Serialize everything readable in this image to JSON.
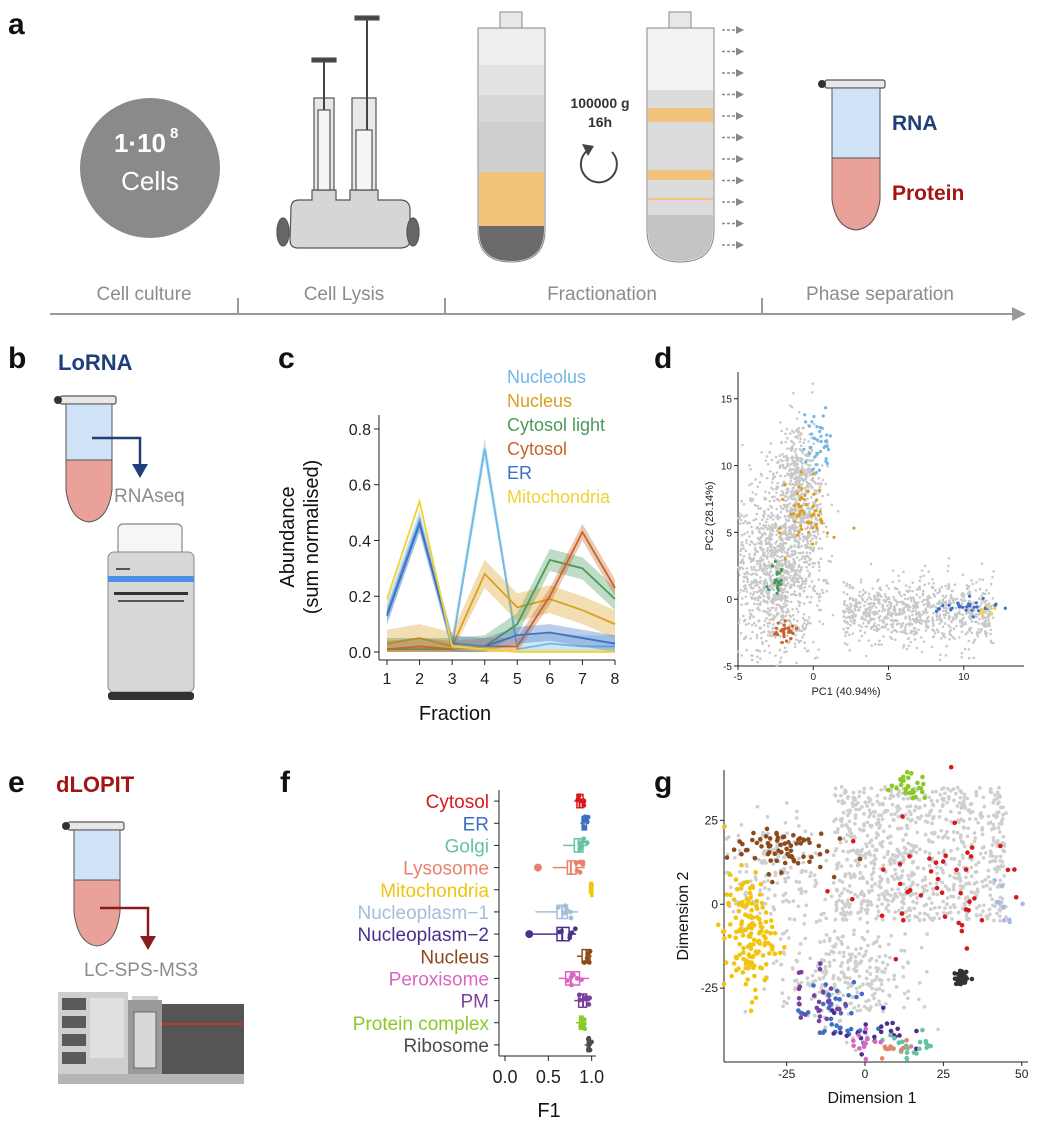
{
  "panel_labels": {
    "a": "a",
    "b": "b",
    "c": "c",
    "d": "d",
    "e": "e",
    "f": "f",
    "g": "g"
  },
  "panel_a": {
    "cells_number": "1·10",
    "cells_exponent": "8",
    "cells_word": "Cells",
    "centrifuge_speed": "100000 g",
    "centrifuge_time": "16h",
    "rna_label": "RNA",
    "protein_label": "Protein",
    "stages": [
      "Cell culture",
      "Cell Lysis",
      "Fractionation",
      "Phase separation"
    ],
    "colors": {
      "rna": "#1f3f7a",
      "protein": "#a31515",
      "band": "#f0c27a",
      "stage_text": "#8c8c8c"
    }
  },
  "panel_b": {
    "title": "LoRNA",
    "method": "RNAseq",
    "colors": {
      "title": "#1f3f7a"
    }
  },
  "panel_e": {
    "title": "dLOPIT",
    "method": "LC-SPS-MS3",
    "colors": {
      "title": "#a31515"
    }
  },
  "chart_data": [
    {
      "id": "c",
      "type": "line",
      "xlabel": "Fraction",
      "ylabel_line1": "Abundance",
      "ylabel_line2": "(sum normalised)",
      "x": [
        1,
        2,
        3,
        4,
        5,
        6,
        7,
        8
      ],
      "xlim": [
        1,
        8
      ],
      "ylim": [
        0,
        0.85
      ],
      "yticks": [
        0.0,
        0.2,
        0.4,
        0.6,
        0.8
      ],
      "ytick_labels": [
        "0.0",
        "0.2",
        "0.4",
        "0.6",
        "0.8"
      ],
      "xtick_labels": [
        "1",
        "2",
        "3",
        "4",
        "5",
        "6",
        "7",
        "8"
      ],
      "series": [
        {
          "name": "Nucleolus",
          "color": "#6fb8e6",
          "values": [
            0.14,
            0.47,
            0.02,
            0.73,
            0.01,
            0.03,
            0.02,
            0.02
          ],
          "band": 0.04
        },
        {
          "name": "Nucleus",
          "color": "#d9a021",
          "values": [
            0.03,
            0.05,
            0.02,
            0.28,
            0.16,
            0.19,
            0.15,
            0.1
          ],
          "band": 0.05
        },
        {
          "name": "Cytosol light",
          "color": "#4a9a5c",
          "values": [
            0.01,
            0.01,
            0.01,
            0.02,
            0.1,
            0.33,
            0.3,
            0.19
          ],
          "band": 0.04
        },
        {
          "name": "Cytosol",
          "color": "#c8632c",
          "values": [
            0.01,
            0.02,
            0.01,
            0.02,
            0.02,
            0.2,
            0.43,
            0.23
          ],
          "band": 0.03
        },
        {
          "name": "ER",
          "color": "#3f6fc2",
          "values": [
            0.13,
            0.46,
            0.03,
            0.02,
            0.06,
            0.07,
            0.05,
            0.03
          ],
          "band": 0.03
        },
        {
          "name": "Mitochondria",
          "color": "#f1d336",
          "values": [
            0.19,
            0.54,
            0.02,
            0.01,
            0.0,
            0.0,
            0.0,
            0.0
          ],
          "band": 0.01
        }
      ]
    },
    {
      "id": "d",
      "type": "scatter",
      "xlabel": "PC1 (40.94%)",
      "ylabel": "PC2 (28.14%)",
      "xlim": [
        -5,
        14
      ],
      "ylim": [
        -5,
        17
      ],
      "xticks": [
        -5,
        0,
        5,
        10
      ],
      "yticks": [
        -5,
        0,
        5,
        10,
        15
      ],
      "xtick_labels": [
        "-5",
        "0",
        "5",
        "10"
      ],
      "ytick_labels": [
        "-5",
        "0",
        "5",
        "10",
        "15"
      ],
      "background_color": "#c8c8c8",
      "clusters": [
        {
          "name": "Nucleolus",
          "color": "#6fb8e6",
          "center": [
            0.3,
            11.5
          ],
          "spread": [
            0.5,
            1.2
          ],
          "n": 40
        },
        {
          "name": "Nucleus",
          "color": "#d9a021",
          "center": [
            -0.3,
            6.5
          ],
          "spread": [
            0.7,
            1.3
          ],
          "n": 60
        },
        {
          "name": "Cytosol light",
          "color": "#4a9a5c",
          "center": [
            -2.5,
            1.5
          ],
          "spread": [
            0.3,
            1.0
          ],
          "n": 22
        },
        {
          "name": "Cytosol",
          "color": "#c8632c",
          "center": [
            -1.9,
            -2.4
          ],
          "spread": [
            0.4,
            0.3
          ],
          "n": 30
        },
        {
          "name": "ER",
          "color": "#3f6fc2",
          "center": [
            10.2,
            -0.6
          ],
          "spread": [
            1.0,
            0.3
          ],
          "n": 30
        },
        {
          "name": "Mitochondria",
          "color": "#f1d336",
          "center": [
            11.5,
            -0.9
          ],
          "spread": [
            0.3,
            0.2
          ],
          "n": 6
        }
      ]
    },
    {
      "id": "f",
      "type": "boxplot",
      "xlabel": "F1",
      "xlim": [
        0,
        1.05
      ],
      "xticks": [
        0.0,
        0.5,
        1.0
      ],
      "xtick_labels": [
        "0.0",
        "0.5",
        "1.0"
      ],
      "categories": [
        "Cytosol",
        "ER",
        "Golgi",
        "Lysosome",
        "Mitochondria",
        "Nucleoplasm−1",
        "Nucleoplasm−2",
        "Nucleus",
        "Peroxisome",
        "PM",
        "Protein complex",
        "Ribosome"
      ],
      "colors": [
        "#d7191c",
        "#3f6fc2",
        "#66c2a5",
        "#e8836b",
        "#f1c40f",
        "#a6bddb",
        "#4b2f8f",
        "#8c4a1c",
        "#d966c2",
        "#7b3f9e",
        "#8ac926",
        "#4d4d4d"
      ],
      "boxes": [
        {
          "min": 0.8,
          "q1": 0.83,
          "median": 0.86,
          "q3": 0.9,
          "max": 0.92
        },
        {
          "min": 0.87,
          "q1": 0.89,
          "median": 0.91,
          "q3": 0.94,
          "max": 0.97
        },
        {
          "min": 0.67,
          "q1": 0.8,
          "median": 0.85,
          "q3": 0.9,
          "max": 0.95
        },
        {
          "min": 0.55,
          "q1": 0.72,
          "median": 0.76,
          "q3": 0.82,
          "max": 0.92,
          "outlier": 0.38
        },
        {
          "min": 0.98,
          "q1": 0.99,
          "median": 1.0,
          "q3": 1.0,
          "max": 1.0
        },
        {
          "min": 0.35,
          "q1": 0.6,
          "median": 0.66,
          "q3": 0.72,
          "max": 0.84
        },
        {
          "min": 0.25,
          "q1": 0.6,
          "median": 0.66,
          "q3": 0.74,
          "max": 0.82,
          "outlier": 0.28
        },
        {
          "min": 0.83,
          "q1": 0.89,
          "median": 0.94,
          "q3": 0.98,
          "max": 1.0
        },
        {
          "min": 0.62,
          "q1": 0.7,
          "median": 0.76,
          "q3": 0.86,
          "max": 0.97
        },
        {
          "min": 0.8,
          "q1": 0.85,
          "median": 0.9,
          "q3": 0.94,
          "max": 0.98
        },
        {
          "min": 0.82,
          "q1": 0.86,
          "median": 0.88,
          "q3": 0.9,
          "max": 0.94
        },
        {
          "min": 0.92,
          "q1": 0.95,
          "median": 0.97,
          "q3": 0.98,
          "max": 1.0
        }
      ]
    },
    {
      "id": "g",
      "type": "scatter",
      "xlabel": "Dimension 1",
      "ylabel": "Dimension 2",
      "xlim": [
        -45,
        52
      ],
      "ylim": [
        -47,
        40
      ],
      "xticks": [
        -25,
        0,
        25,
        50
      ],
      "yticks": [
        -25,
        0,
        25
      ],
      "xtick_labels": [
        "-25",
        "0",
        "25",
        "50"
      ],
      "ytick_labels": [
        "-25",
        "0",
        "25"
      ],
      "background_color": "#cfcfcf",
      "clusters": [
        {
          "name": "Mitochondria",
          "color": "#f1c40f",
          "center": [
            -37,
            -9
          ],
          "spread": [
            4,
            9
          ],
          "n": 150
        },
        {
          "name": "Nucleus",
          "color": "#8c4a1c",
          "center": [
            -28,
            17
          ],
          "spread": [
            8,
            3.5
          ],
          "n": 70
        },
        {
          "name": "Cytosol",
          "color": "#d7191c",
          "center": [
            22,
            5
          ],
          "spread": [
            15,
            10
          ],
          "n": 45
        },
        {
          "name": "ER",
          "color": "#3f6fc2",
          "center": [
            -10,
            -33
          ],
          "spread": [
            6,
            5
          ],
          "n": 40
        },
        {
          "name": "Nucleoplasm-2",
          "color": "#4b2f8f",
          "center": [
            2,
            -38
          ],
          "spread": [
            6,
            3
          ],
          "n": 25
        },
        {
          "name": "PM",
          "color": "#7b3f9e",
          "center": [
            -15,
            -27
          ],
          "spread": [
            4,
            6
          ],
          "n": 25
        },
        {
          "name": "Protein complex",
          "color": "#8ac926",
          "center": [
            14,
            35
          ],
          "spread": [
            3,
            2
          ],
          "n": 30
        },
        {
          "name": "Golgi",
          "color": "#66c2a5",
          "center": [
            15,
            -42
          ],
          "spread": [
            5,
            2
          ],
          "n": 25
        },
        {
          "name": "Lysosome",
          "color": "#e8836b",
          "center": [
            10,
            -43
          ],
          "spread": [
            3,
            1.5
          ],
          "n": 10
        },
        {
          "name": "Peroxisome",
          "color": "#d966c2",
          "center": [
            0,
            -40
          ],
          "spread": [
            3,
            2
          ],
          "n": 12
        },
        {
          "name": "Nucleoplasm-1",
          "color": "#a6bddb",
          "center": [
            45,
            0
          ],
          "spread": [
            3,
            4
          ],
          "n": 10
        },
        {
          "name": "Ribosome",
          "color": "#333333",
          "center": [
            31,
            -22
          ],
          "spread": [
            1.2,
            1
          ],
          "n": 40
        }
      ]
    }
  ]
}
